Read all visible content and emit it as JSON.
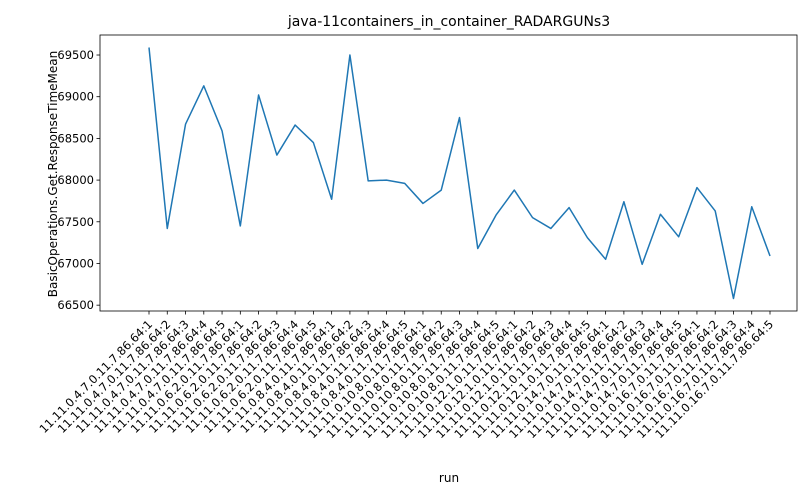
{
  "chart_data": {
    "type": "line",
    "title": "java-11containers_in_container_RADARGUNs3",
    "xlabel": "run",
    "ylabel": "BasicOperations.Get.ResponseTimeMean",
    "categories": [
      "11.11.0.4.7.0.11.7.86.64:1",
      "11.11.0.4.7.0.11.7.86.64:2",
      "11.11.0.4.7.0.11.7.86.64:3",
      "11.11.0.4.7.0.11.7.86.64:4",
      "11.11.0.4.7.0.11.7.86.64:5",
      "11.11.0.6.2.0.11.7.86.64:1",
      "11.11.0.6.2.0.11.7.86.64:2",
      "11.11.0.6.2.0.11.7.86.64:3",
      "11.11.0.6.2.0.11.7.86.64:4",
      "11.11.0.6.2.0.11.7.86.64:5",
      "11.11.0.8.4.0.11.7.86.64:1",
      "11.11.0.8.4.0.11.7.86.64:2",
      "11.11.0.8.4.0.11.7.86.64:3",
      "11.11.0.8.4.0.11.7.86.64:4",
      "11.11.0.8.4.0.11.7.86.64:5",
      "11.11.0.10.8.0.11.7.86.64:1",
      "11.11.0.10.8.0.11.7.86.64:2",
      "11.11.0.10.8.0.11.7.86.64:3",
      "11.11.0.10.8.0.11.7.86.64:4",
      "11.11.0.10.8.0.11.7.86.64:5",
      "11.11.0.12.1.0.11.7.86.64:1",
      "11.11.0.12.1.0.11.7.86.64:2",
      "11.11.0.12.1.0.11.7.86.64:3",
      "11.11.0.12.1.0.11.7.86.64:4",
      "11.11.0.12.1.0.11.7.86.64:5",
      "11.11.0.14.7.0.11.7.86.64:1",
      "11.11.0.14.7.0.11.7.86.64:2",
      "11.11.0.14.7.0.11.7.86.64:3",
      "11.11.0.14.7.0.11.7.86.64:4",
      "11.11.0.14.7.0.11.7.86.64:5",
      "11.11.0.16.7.0.11.7.86.64:1",
      "11.11.0.16.7.0.11.7.86.64:2",
      "11.11.0.16.7.0.11.7.86.64:3",
      "11.11.0.16.7.0.11.7.86.64:4",
      "11.11.0.16.7.0.11.7.86.64:5"
    ],
    "values": [
      69590,
      67420,
      68670,
      69130,
      68590,
      67450,
      69020,
      68300,
      68660,
      68450,
      67770,
      69500,
      67990,
      68000,
      67960,
      67720,
      67880,
      68750,
      67180,
      67580,
      67880,
      67550,
      67420,
      67670,
      67310,
      67050,
      67740,
      66990,
      67590,
      67320,
      67910,
      67630,
      66580,
      67680,
      67090
    ],
    "yticks": [
      66500,
      67000,
      67500,
      68000,
      68500,
      69000,
      69500
    ],
    "ylim": [
      66430,
      69740
    ],
    "line_color": "#1f77b4",
    "grid": false,
    "legend": "none"
  }
}
